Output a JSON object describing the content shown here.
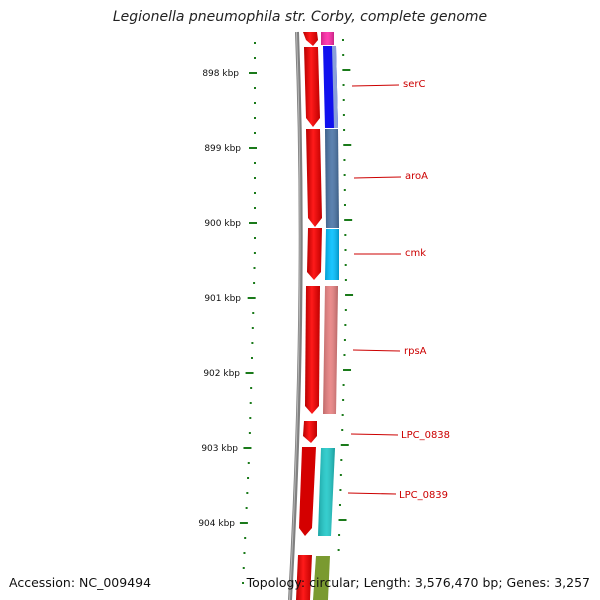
{
  "title": "Legionella pneumophila str. Corby, complete genome",
  "accession": "Accession: NC_009494",
  "topology": "Topology: circular; Length: 3,576,470 bp; Genes: 3,257",
  "colors": {
    "backbone": "#808080",
    "forward_strand": "#ff0000",
    "tick": "#1a7a1a",
    "label": "#cc0000"
  },
  "ticks": [
    {
      "kbp": 898,
      "label": "898 kbp"
    },
    {
      "kbp": 899,
      "label": "899 kbp"
    },
    {
      "kbp": 900,
      "label": "900 kbp"
    },
    {
      "kbp": 901,
      "label": "901 kbp"
    },
    {
      "kbp": 902,
      "label": "902 kbp"
    },
    {
      "kbp": 903,
      "label": "903 kbp"
    },
    {
      "kbp": 904,
      "label": "904 kbp"
    }
  ],
  "genes": [
    {
      "name": "serC",
      "start_kbp": 897.92,
      "end_kbp": 898.6,
      "color": "#1010ee"
    },
    {
      "name": "aroA",
      "start_kbp": 898.64,
      "end_kbp": 899.75,
      "color": "#4a74a6"
    },
    {
      "name": "cmk",
      "start_kbp": 899.75,
      "end_kbp": 900.4,
      "color": "#00bfff"
    },
    {
      "name": "rpsA",
      "start_kbp": 900.44,
      "end_kbp": 902.12,
      "color": "#e88080"
    },
    {
      "name": "LPC_0838",
      "start_kbp": null,
      "end_kbp": null,
      "color": null
    },
    {
      "name": "LPC_0839",
      "start_kbp": 903.0,
      "end_kbp": 904.0,
      "color": "#20c8c8"
    }
  ]
}
